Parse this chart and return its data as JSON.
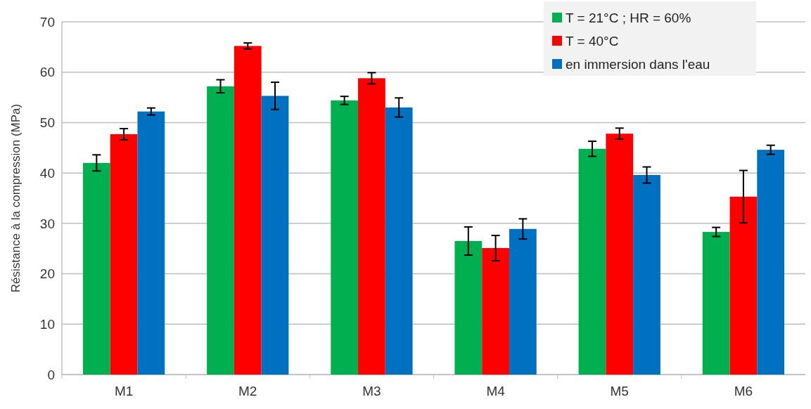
{
  "chart_data": {
    "type": "bar",
    "ylabel": "Résistance à la compression (MPa)",
    "categories": [
      "M1",
      "M2",
      "M3",
      "M4",
      "M5",
      "M6"
    ],
    "series": [
      {
        "name": "T = 21°C ; HR = 60%",
        "color": "#00b050",
        "values": [
          42.0,
          57.2,
          54.4,
          26.5,
          44.8,
          28.3
        ],
        "errors": [
          1.6,
          1.3,
          0.8,
          2.8,
          1.5,
          0.9
        ]
      },
      {
        "name": "T = 40°C",
        "color": "#ff0000",
        "values": [
          47.7,
          65.2,
          58.8,
          25.1,
          47.8,
          35.3
        ],
        "errors": [
          1.1,
          0.6,
          1.1,
          2.5,
          1.1,
          5.2
        ]
      },
      {
        "name": "en immersion dans l'eau",
        "color": "#0070c0",
        "values": [
          52.2,
          55.3,
          53.0,
          28.9,
          39.6,
          44.6
        ],
        "errors": [
          0.7,
          2.7,
          1.9,
          2.0,
          1.6,
          0.9
        ]
      }
    ],
    "ylim": [
      0,
      70
    ],
    "yticks": [
      0,
      10,
      20,
      30,
      40,
      50,
      60,
      70
    ],
    "grid": "y",
    "legend": "top right"
  }
}
